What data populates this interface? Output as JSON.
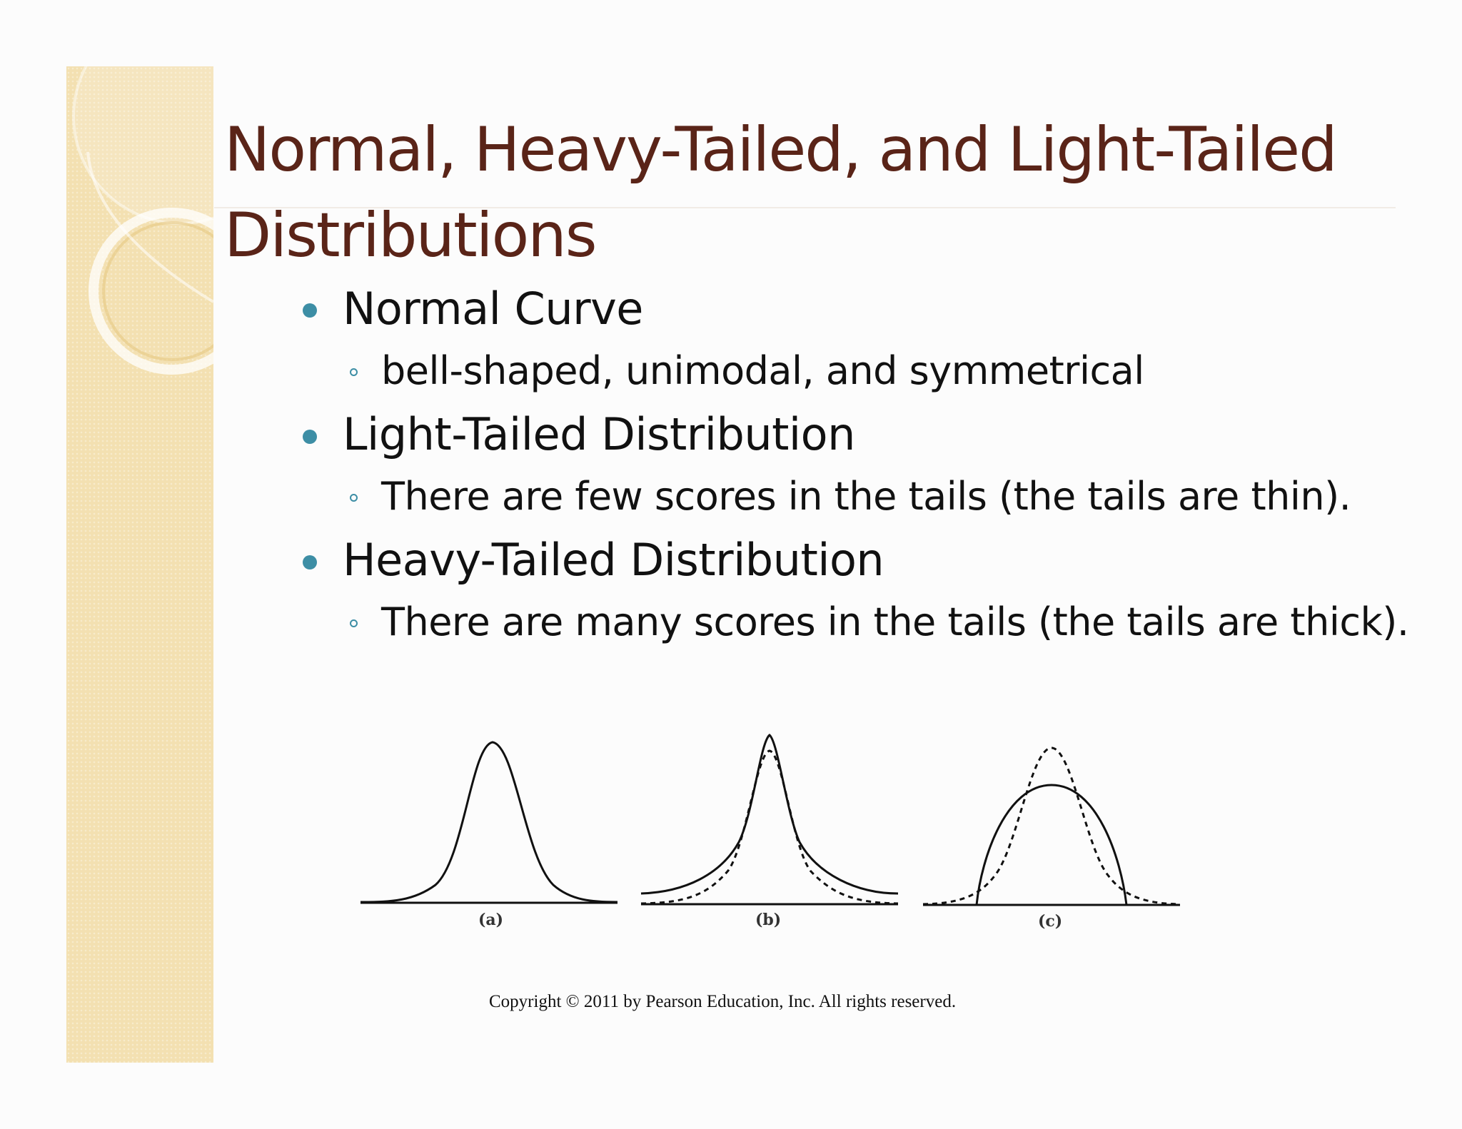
{
  "slide": {
    "title": "Normal, Heavy-Tailed, and Light-Tailed Distributions",
    "bullets": [
      {
        "text": "Normal Curve",
        "sub": "bell-shaped, unimodal, and symmetrical"
      },
      {
        "text": "Light-Tailed Distribution",
        "sub": "There are few scores in the tails (the tails are thin)."
      },
      {
        "text": "Heavy-Tailed Distribution",
        "sub": "There are many scores in the tails (the tails are thick)."
      }
    ],
    "figure": {
      "labels": [
        "(a)",
        "(b)",
        "(c)"
      ]
    },
    "copyright": "Copyright © 2011 by Pearson Education, Inc. All rights reserved.",
    "colors": {
      "title": "#5a2418",
      "bullet": "#3d8ea5",
      "side_strip": "#f3e0b1",
      "text": "#111111"
    }
  }
}
